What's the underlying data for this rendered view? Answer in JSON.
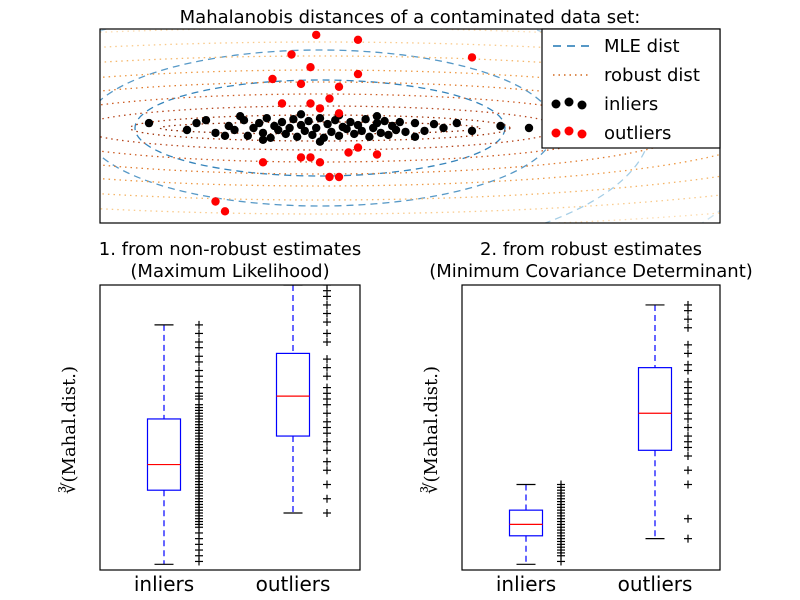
{
  "chart_data": [
    {
      "type": "scatter",
      "title": "Mahalanobis distances of a contaminated data set:",
      "legend": {
        "placement": "top-right",
        "entries": [
          {
            "label": "MLE dist",
            "style": "dashed",
            "color": "#1f77b4"
          },
          {
            "label": "robust dist",
            "style": "dotted",
            "color": "#d2691e"
          },
          {
            "label": "inliers",
            "style": "marker",
            "color": "#000000"
          },
          {
            "label": "outliers",
            "style": "marker",
            "color": "#ff0000"
          }
        ]
      },
      "series": [
        {
          "name": "inliers",
          "color": "#000000",
          "points": [
            [
              -0.9,
              0.05
            ],
            [
              -0.65,
              0.05
            ],
            [
              -0.55,
              -0.05
            ],
            [
              -0.48,
              0.02
            ],
            [
              -0.45,
              -0.02
            ],
            [
              -0.4,
              0.08
            ],
            [
              -0.38,
              -0.08
            ],
            [
              -0.35,
              0.0
            ],
            [
              -0.32,
              0.05
            ],
            [
              -0.3,
              -0.05
            ],
            [
              -0.28,
              0.1
            ],
            [
              -0.26,
              -0.1
            ],
            [
              -0.24,
              0.02
            ],
            [
              -0.22,
              -0.02
            ],
            [
              -0.2,
              0.06
            ],
            [
              -0.18,
              -0.06
            ],
            [
              -0.16,
              0.0
            ],
            [
              -0.14,
              0.09
            ],
            [
              -0.12,
              -0.09
            ],
            [
              -0.1,
              0.03
            ],
            [
              -0.08,
              -0.03
            ],
            [
              -0.06,
              0.07
            ],
            [
              -0.04,
              -0.07
            ],
            [
              -0.02,
              0.0
            ],
            [
              0.0,
              0.1
            ],
            [
              0.02,
              -0.1
            ],
            [
              0.04,
              0.04
            ],
            [
              0.06,
              -0.04
            ],
            [
              0.08,
              0.08
            ],
            [
              0.1,
              -0.08
            ],
            [
              0.12,
              0.01
            ],
            [
              0.14,
              -0.01
            ],
            [
              0.16,
              0.06
            ],
            [
              0.18,
              -0.06
            ],
            [
              0.2,
              0.03
            ],
            [
              0.22,
              -0.03
            ],
            [
              0.24,
              0.09
            ],
            [
              0.26,
              -0.09
            ],
            [
              0.28,
              0.0
            ],
            [
              0.3,
              0.05
            ],
            [
              0.32,
              -0.05
            ],
            [
              0.34,
              0.07
            ],
            [
              0.36,
              -0.07
            ],
            [
              0.38,
              0.02
            ],
            [
              0.4,
              -0.02
            ],
            [
              0.42,
              0.06
            ],
            [
              0.45,
              -0.04
            ],
            [
              0.5,
              0.05
            ],
            [
              0.55,
              -0.03
            ],
            [
              0.6,
              0.04
            ],
            [
              0.65,
              0.0
            ],
            [
              0.72,
              0.05
            ],
            [
              0.8,
              -0.03
            ],
            [
              0.95,
              0.02
            ],
            [
              -0.7,
              -0.02
            ],
            [
              -0.6,
              0.08
            ],
            [
              -0.5,
              -0.08
            ],
            [
              -0.42,
              0.12
            ],
            [
              0.3,
              0.12
            ],
            [
              0.1,
              0.13
            ],
            [
              -0.1,
              0.14
            ],
            [
              0.0,
              -0.14
            ],
            [
              -0.3,
              -0.12
            ],
            [
              0.5,
              -0.09
            ],
            [
              1.1,
              0.0
            ],
            [
              1.3,
              0.02
            ]
          ]
        },
        {
          "name": "outliers",
          "color": "#ff0000",
          "points": [
            [
              -0.02,
              0.95
            ],
            [
              0.2,
              0.9
            ],
            [
              -0.15,
              0.75
            ],
            [
              0.8,
              0.72
            ],
            [
              -0.05,
              0.62
            ],
            [
              0.2,
              0.55
            ],
            [
              -0.25,
              0.5
            ],
            [
              -0.1,
              0.45
            ],
            [
              0.1,
              0.42
            ],
            [
              0.05,
              0.3
            ],
            [
              -0.05,
              0.25
            ],
            [
              0.0,
              0.2
            ],
            [
              0.1,
              0.15
            ],
            [
              -0.2,
              0.25
            ],
            [
              0.15,
              -0.25
            ],
            [
              0.3,
              -0.27
            ],
            [
              -0.1,
              -0.3
            ],
            [
              0.0,
              -0.35
            ],
            [
              -0.05,
              -0.3
            ],
            [
              -0.3,
              -0.35
            ],
            [
              0.05,
              -0.5
            ],
            [
              0.1,
              -0.5
            ],
            [
              -0.55,
              -0.75
            ],
            [
              -0.5,
              -0.85
            ],
            [
              0.2,
              -0.2
            ]
          ]
        }
      ]
    },
    {
      "type": "box",
      "title": "1. from non-robust estimates\n(Maximum Likelihood)",
      "title_lines": [
        "1. from non-robust estimates",
        "(Maximum Likelihood)"
      ],
      "ylabel": "∛(Mahal.dist.)",
      "categories": [
        "inliers",
        "outliers"
      ],
      "ylim": [
        0.0,
        1.0
      ],
      "boxes": [
        {
          "name": "inliers",
          "whislo": 0.02,
          "q1": 0.28,
          "med": 0.37,
          "q3": 0.53,
          "whishi": 0.86,
          "strip": [
            0.03,
            0.05,
            0.07,
            0.09,
            0.11,
            0.13,
            0.15,
            0.16,
            0.17,
            0.18,
            0.19,
            0.2,
            0.21,
            0.22,
            0.23,
            0.24,
            0.25,
            0.26,
            0.27,
            0.28,
            0.29,
            0.3,
            0.31,
            0.32,
            0.33,
            0.34,
            0.35,
            0.36,
            0.37,
            0.38,
            0.39,
            0.4,
            0.41,
            0.42,
            0.43,
            0.44,
            0.45,
            0.46,
            0.47,
            0.48,
            0.49,
            0.5,
            0.51,
            0.52,
            0.53,
            0.54,
            0.55,
            0.56,
            0.57,
            0.58,
            0.6,
            0.61,
            0.62,
            0.64,
            0.66,
            0.68,
            0.7,
            0.73,
            0.75,
            0.78,
            0.8,
            0.83,
            0.86
          ]
        },
        {
          "name": "outliers",
          "whislo": 0.2,
          "q1": 0.47,
          "med": 0.61,
          "q3": 0.76,
          "whishi": 1.0,
          "strip": [
            0.2,
            0.25,
            0.3,
            0.35,
            0.38,
            0.42,
            0.45,
            0.48,
            0.5,
            0.52,
            0.55,
            0.58,
            0.6,
            0.62,
            0.64,
            0.68,
            0.71,
            0.74,
            0.8,
            0.83,
            0.87,
            0.9,
            0.93,
            0.96,
            0.98,
            1.0
          ]
        }
      ]
    },
    {
      "type": "box",
      "title": "2. from robust estimates\n(Minimum Covariance Determinant)",
      "title_lines": [
        "2. from robust estimates",
        "(Minimum Covariance Determinant)"
      ],
      "ylabel": "∛(Mahal.dist.)",
      "categories": [
        "inliers",
        "outliers"
      ],
      "ylim": [
        0.0,
        1.0
      ],
      "boxes": [
        {
          "name": "inliers",
          "whislo": 0.02,
          "q1": 0.12,
          "med": 0.16,
          "q3": 0.21,
          "whishi": 0.3,
          "strip": [
            0.03,
            0.05,
            0.06,
            0.07,
            0.08,
            0.09,
            0.1,
            0.11,
            0.12,
            0.13,
            0.14,
            0.15,
            0.16,
            0.17,
            0.18,
            0.19,
            0.2,
            0.21,
            0.22,
            0.23,
            0.24,
            0.25,
            0.26,
            0.27,
            0.28,
            0.29,
            0.3
          ]
        },
        {
          "name": "outliers",
          "whislo": 0.11,
          "q1": 0.42,
          "med": 0.55,
          "q3": 0.71,
          "whishi": 0.93,
          "strip": [
            0.11,
            0.18,
            0.3,
            0.35,
            0.4,
            0.43,
            0.45,
            0.47,
            0.5,
            0.53,
            0.55,
            0.58,
            0.6,
            0.62,
            0.64,
            0.66,
            0.7,
            0.72,
            0.76,
            0.79,
            0.85,
            0.88,
            0.91,
            0.93
          ]
        }
      ]
    }
  ]
}
